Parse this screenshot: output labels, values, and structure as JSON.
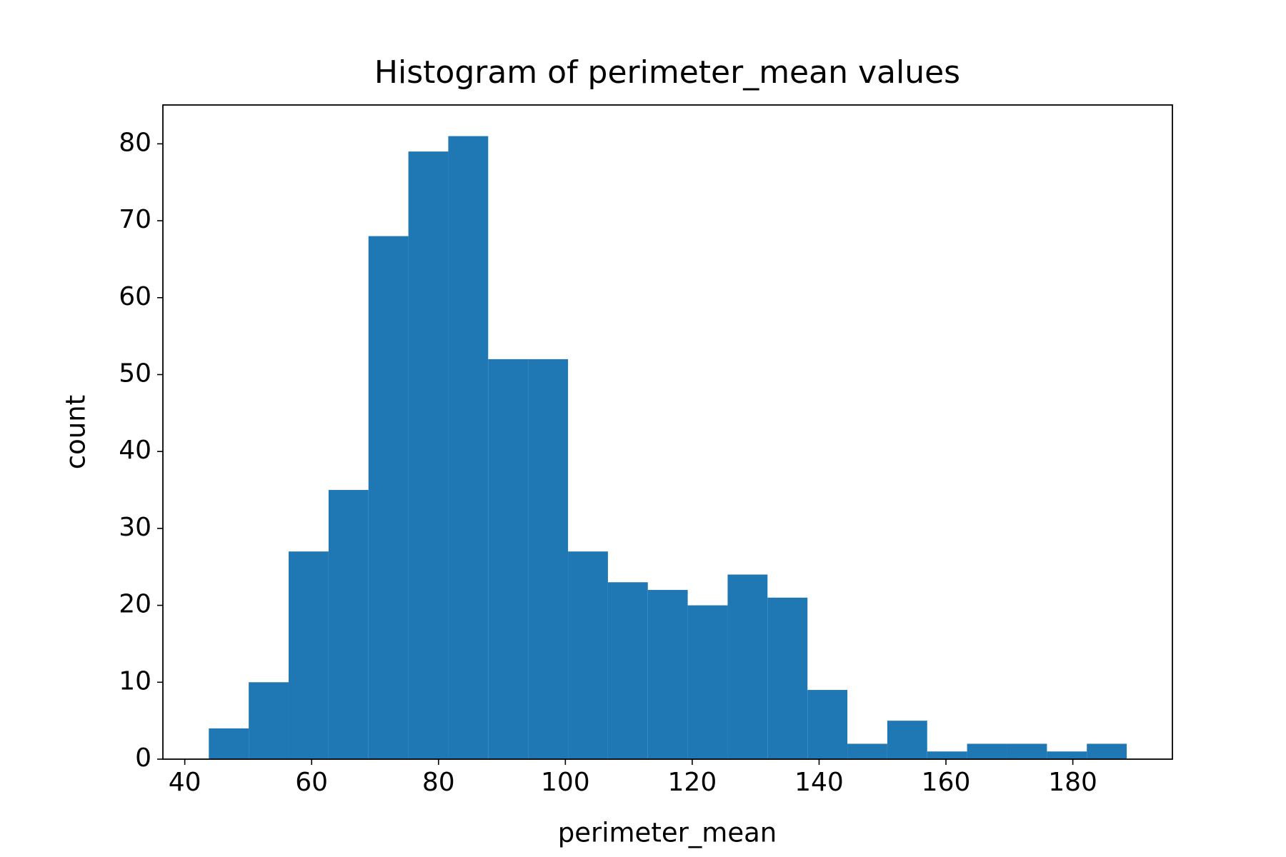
{
  "chart_data": {
    "type": "histogram",
    "title": "Histogram of perimeter_mean values",
    "xlabel": "perimeter_mean",
    "ylabel": "count",
    "bins": [
      43.79,
      50.08,
      56.37,
      62.67,
      68.96,
      75.25,
      81.54,
      87.83,
      94.12,
      100.42,
      106.71,
      113.0,
      119.29,
      125.58,
      131.87,
      138.17,
      144.46,
      150.75,
      157.04,
      163.33,
      169.62,
      175.92,
      182.21,
      188.5
    ],
    "values": [
      4,
      10,
      27,
      35,
      68,
      79,
      81,
      52,
      52,
      27,
      23,
      22,
      20,
      24,
      21,
      9,
      2,
      5,
      1,
      2,
      2,
      1,
      2
    ],
    "color": "#1f77b4",
    "xlim": [
      36.55,
      195.7
    ],
    "xticks": [
      40,
      60,
      80,
      100,
      120,
      140,
      160,
      180
    ],
    "ylim": [
      0,
      85.05
    ],
    "yticks": [
      0,
      10,
      20,
      30,
      40,
      50,
      60,
      70,
      80
    ]
  }
}
